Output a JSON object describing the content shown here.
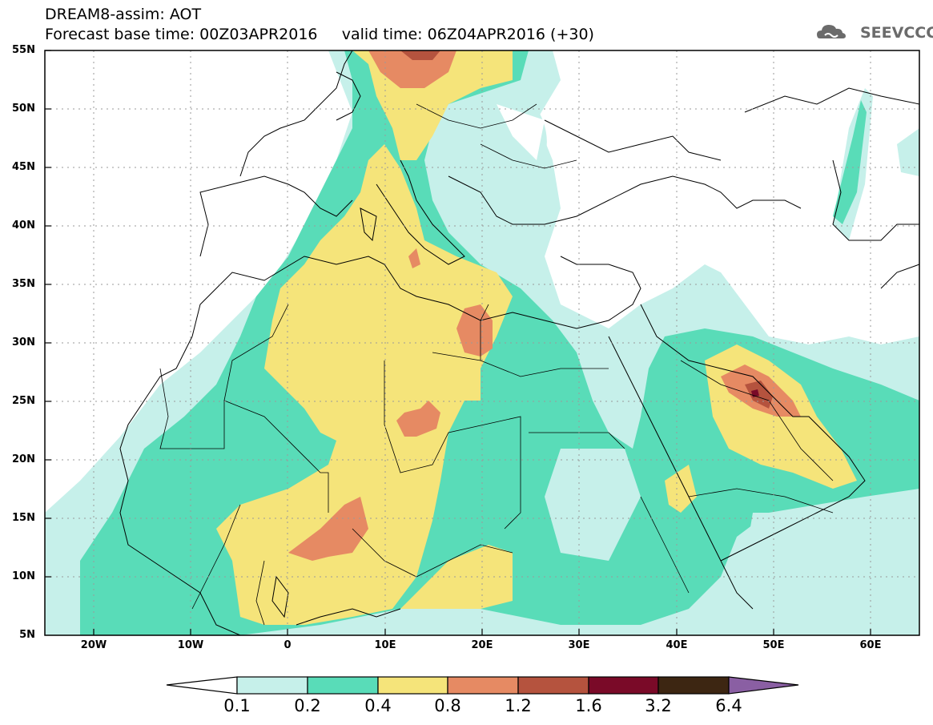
{
  "header": {
    "title_line1": "DREAM8-assim: AOT",
    "title_line2": "Forecast base time: 00Z03APR2016     valid time: 06Z04APR2016 (+30)",
    "logo_text": "SEEVCCC"
  },
  "map": {
    "lat_labels": [
      "55N",
      "50N",
      "45N",
      "40N",
      "35N",
      "30N",
      "25N",
      "20N",
      "15N",
      "10N",
      "5N"
    ],
    "lon_labels": [
      "20W",
      "10W",
      "0",
      "10E",
      "20E",
      "30E",
      "40E",
      "50E",
      "60E"
    ],
    "lat_range": [
      5,
      55
    ],
    "lon_range": [
      -25,
      65
    ],
    "grid": true
  },
  "colorbar": {
    "levels": [
      "0.1",
      "0.2",
      "0.4",
      "0.8",
      "1.2",
      "1.6",
      "3.2",
      "6.4"
    ],
    "colors": {
      "under": "#ffffff",
      "c1": "#c6f0ea",
      "c2": "#59dcb8",
      "c3": "#f5e47a",
      "c4": "#e68a63",
      "c5": "#b5533e",
      "c6": "#7a0a28",
      "c7": "#3d2612",
      "over": "#8a5fa3"
    }
  }
}
